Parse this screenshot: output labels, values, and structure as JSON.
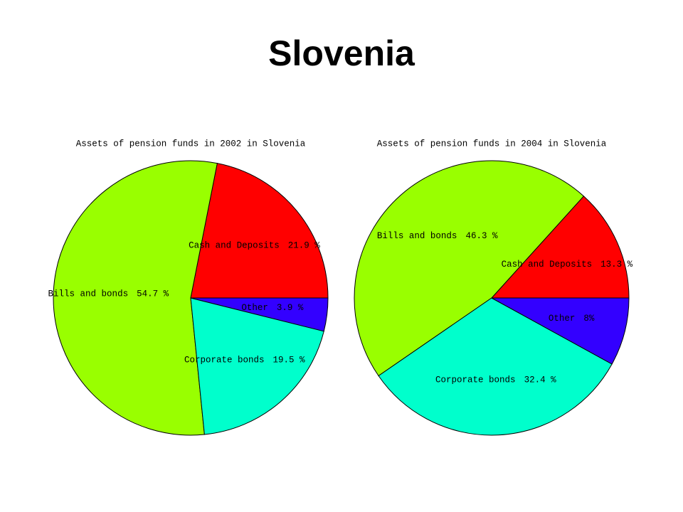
{
  "title": "Slovenia",
  "chart_data": [
    {
      "type": "pie",
      "title": "Assets of pension funds in 2002 in Slovenia",
      "categories": [
        "Cash and Deposits",
        "Bills and bonds",
        "Corporate bonds",
        "Other"
      ],
      "values": [
        21.9,
        54.7,
        19.5,
        3.9
      ],
      "value_labels": [
        "21.9 %",
        "54.7 %",
        "19.5 %",
        "3.9 %"
      ],
      "colors": [
        "#ff0000",
        "#99ff00",
        "#00ffcc",
        "#3300ff"
      ]
    },
    {
      "type": "pie",
      "title": "Assets of pension funds in 2004 in Slovenia",
      "categories": [
        "Cash and Deposits",
        "Bills and bonds",
        "Corporate bonds",
        "Other"
      ],
      "values": [
        13.3,
        46.3,
        32.4,
        8
      ],
      "value_labels": [
        "13.3 %",
        "46.3 %",
        "32.4 %",
        "8%"
      ],
      "colors": [
        "#ff0000",
        "#99ff00",
        "#00ffcc",
        "#3300ff"
      ]
    }
  ]
}
